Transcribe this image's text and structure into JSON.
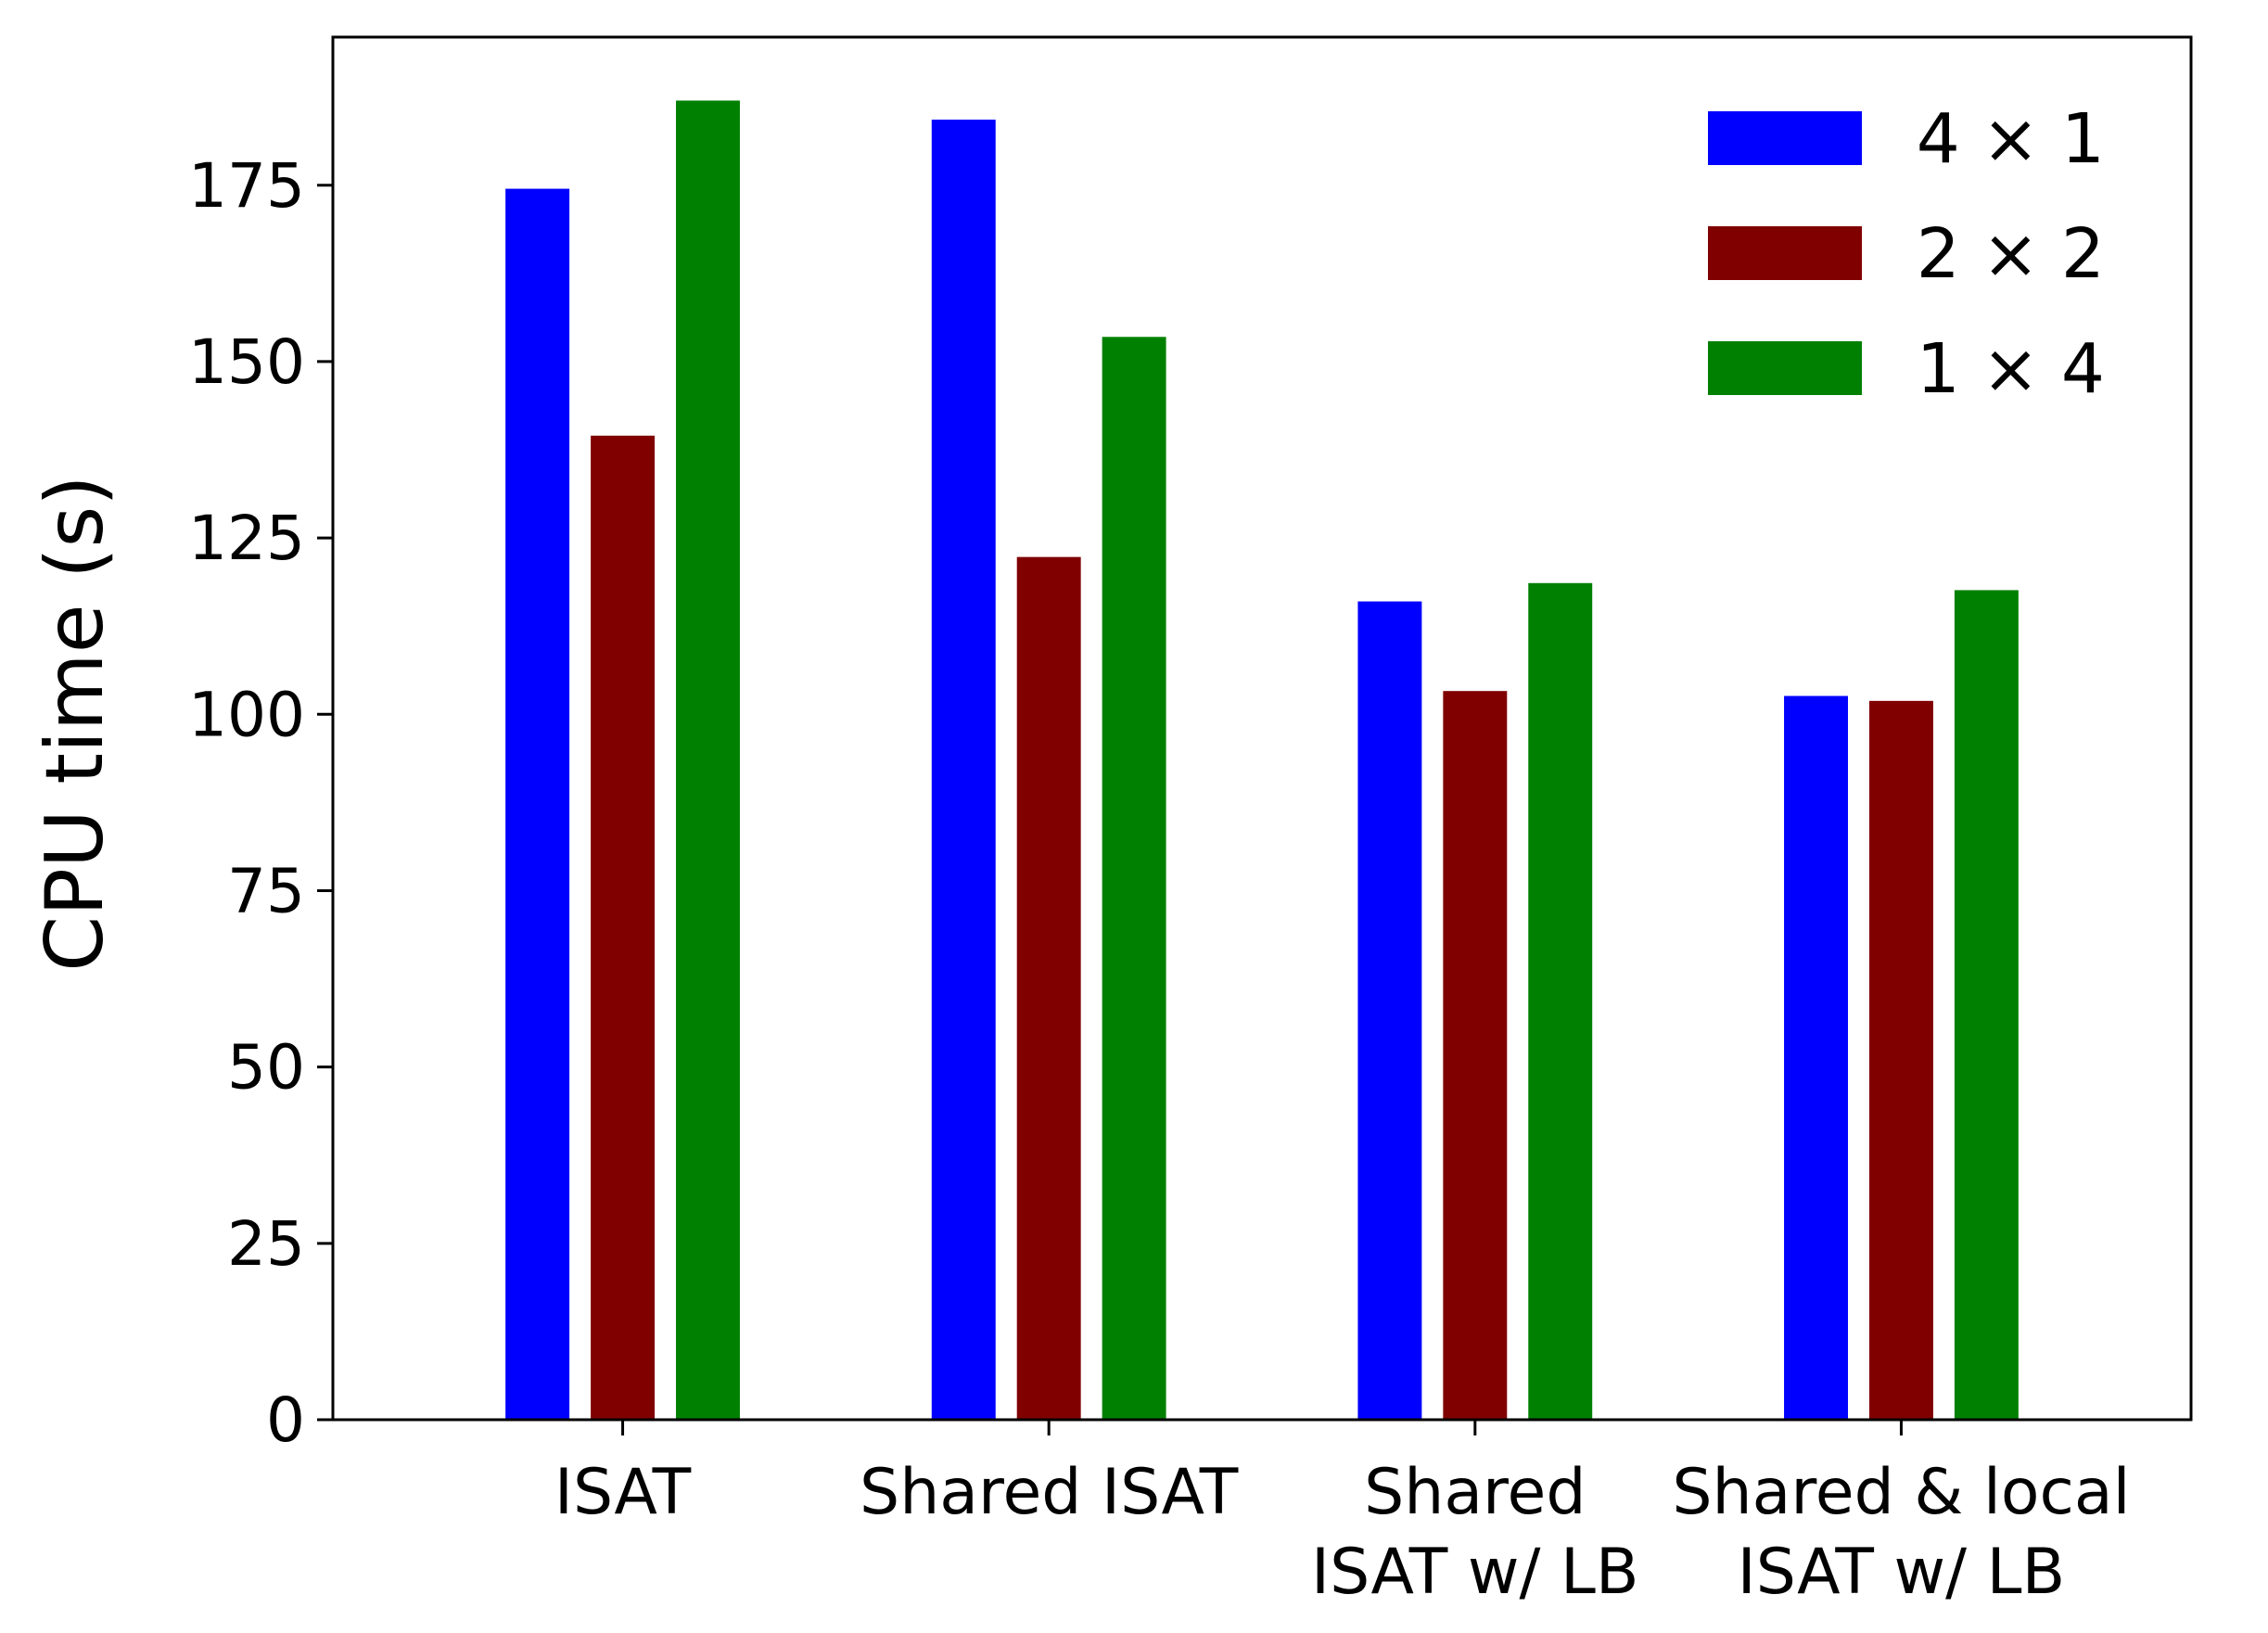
{
  "chart_data": {
    "type": "bar",
    "title": "",
    "xlabel": "",
    "ylabel": "CPU time (s)",
    "ylim": [
      0,
      196
    ],
    "yticks": [
      0,
      25,
      50,
      75,
      100,
      125,
      150,
      175
    ],
    "grid": false,
    "legend_position": "top-right",
    "categories": [
      [
        "ISAT"
      ],
      [
        "Shared ISAT"
      ],
      [
        "Shared",
        "ISAT w/ LB"
      ],
      [
        "Shared & local",
        "ISAT w/ LB"
      ]
    ],
    "series": [
      {
        "name": "4 × 1",
        "color": "#0000ff",
        "values": [
          174.5,
          184.3,
          116.0,
          102.6
        ]
      },
      {
        "name": "2 × 2",
        "color": "#800000",
        "values": [
          139.5,
          122.3,
          103.3,
          101.9
        ]
      },
      {
        "name": "1 × 4",
        "color": "#008000",
        "values": [
          187.0,
          153.5,
          118.6,
          117.6
        ]
      }
    ]
  }
}
